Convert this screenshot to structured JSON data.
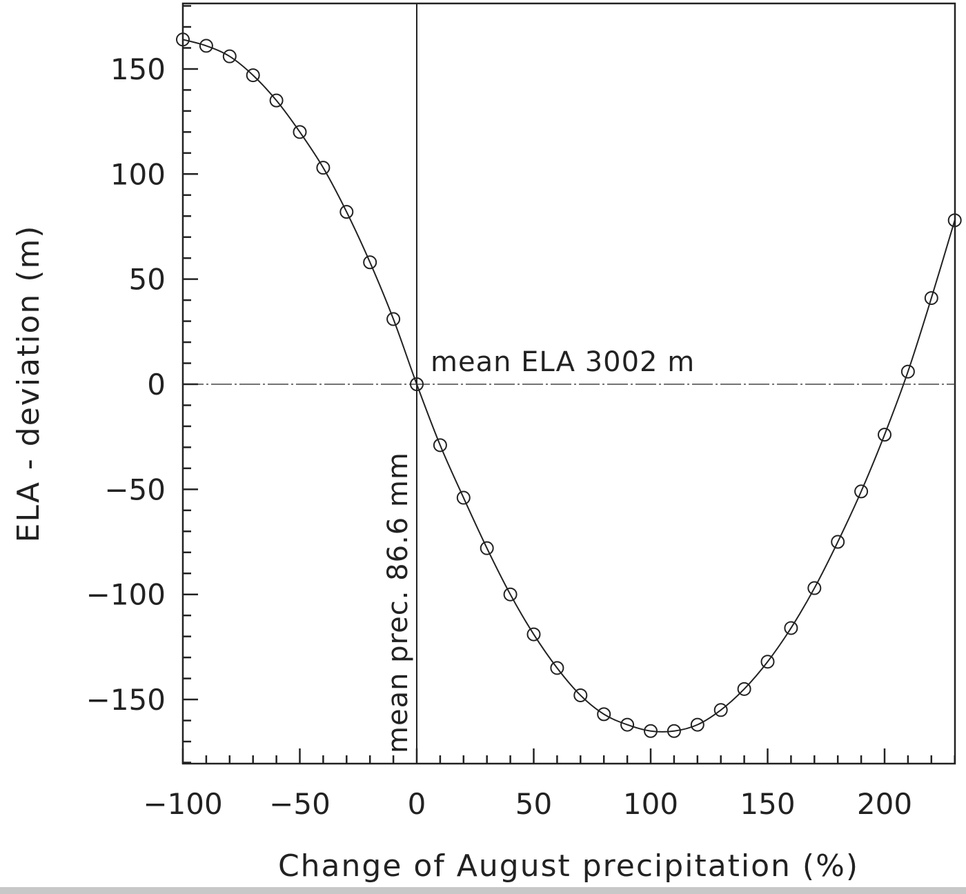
{
  "chart_data": {
    "type": "line",
    "title": "",
    "xlabel": "Change of August precipitation (%)",
    "ylabel": "ELA - deviation (m)",
    "xlim": [
      -100,
      230
    ],
    "ylim": [
      -180,
      181
    ],
    "xticks": [
      -100,
      -50,
      0,
      50,
      100,
      150,
      200
    ],
    "yticks": [
      150,
      100,
      50,
      0,
      -50,
      -100,
      -150
    ],
    "xtick_labels": [
      "−100",
      "−50",
      "0",
      "50",
      "100",
      "150",
      "200"
    ],
    "ytick_labels": [
      "150",
      "100",
      "50",
      "0",
      "−50",
      "−100",
      "−150"
    ],
    "grid": false,
    "annotations": {
      "mean_ela": "mean ELA 3002 m",
      "mean_prec": "mean prec. 86.6 mm"
    },
    "series": [
      {
        "name": "ELA deviation",
        "marker": "circle",
        "x": [
          -100,
          -90,
          -80,
          -70,
          -60,
          -50,
          -40,
          -30,
          -20,
          -10,
          0,
          10,
          20,
          30,
          40,
          50,
          60,
          70,
          80,
          90,
          100,
          110,
          120,
          130,
          140,
          150,
          160,
          170,
          180,
          190,
          200,
          210,
          220,
          230
        ],
        "y": [
          164,
          161,
          156,
          147,
          135,
          120,
          103,
          82,
          58,
          31,
          0,
          -29,
          -54,
          -78,
          -100,
          -119,
          -135,
          -148,
          -157,
          -162,
          -165,
          -165,
          -162,
          -155,
          -145,
          -132,
          -116,
          -97,
          -75,
          -51,
          -24,
          6,
          41,
          78
        ]
      }
    ]
  }
}
